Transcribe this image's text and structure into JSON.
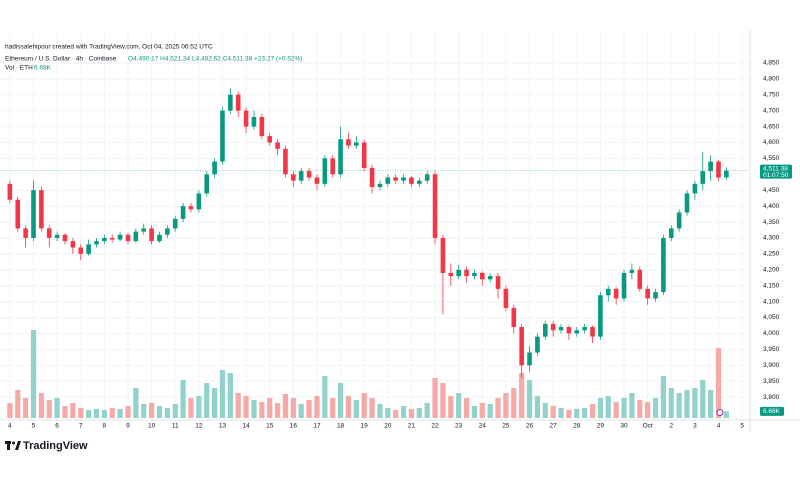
{
  "header": {
    "credit": "hadissalehipour created with TradingView.com, Oct 04, 2025 06:52 UTC",
    "symbol": "Ethereum / U.S. Dollar · 4h · Coinbase",
    "ohlc": "O4,490.17 H4,521.34 L4,482.62 C4,511.38 +23.27 (+0.52%)",
    "volume_label": "Vol · ETH",
    "logo": "TradingView"
  },
  "chart_data": {
    "type": "candlestick",
    "x": [
      0,
      1,
      2,
      3,
      4,
      5,
      6,
      7,
      8,
      9,
      10,
      11,
      12,
      13,
      14,
      15,
      16,
      17,
      18,
      19,
      20,
      21,
      22,
      23,
      24,
      25,
      26,
      27,
      28,
      29,
      30,
      31,
      32,
      33,
      34,
      35,
      36,
      37,
      38,
      39,
      40,
      41,
      42,
      43,
      44,
      45,
      46,
      47,
      48,
      49,
      50,
      51,
      52,
      53,
      54,
      55,
      56,
      57,
      58,
      59,
      60,
      61,
      62,
      63,
      64,
      65,
      66,
      67,
      68,
      69,
      70,
      71,
      72,
      73,
      74,
      75,
      76,
      77,
      78,
      79,
      80,
      81,
      82,
      83,
      84,
      85,
      86,
      87,
      88,
      89,
      90,
      91
    ],
    "open": [
      4470,
      4420,
      4330,
      4300,
      4450,
      4330,
      4300,
      4310,
      4290,
      4270,
      4250,
      4280,
      4290,
      4300,
      4295,
      4310,
      4290,
      4320,
      4330,
      4290,
      4310,
      4330,
      4360,
      4400,
      4390,
      4440,
      4500,
      4540,
      4700,
      4750,
      4700,
      4650,
      4680,
      4620,
      4600,
      4580,
      4500,
      4480,
      4510,
      4490,
      4470,
      4550,
      4500,
      4610,
      4590,
      4600,
      4520,
      4460,
      4470,
      4490,
      4480,
      4490,
      4470,
      4480,
      4500,
      4300,
      4190,
      4180,
      4200,
      4180,
      4190,
      4170,
      4180,
      4140,
      4080,
      4020,
      3900,
      3940,
      3990,
      4030,
      4010,
      4020,
      4000,
      4010,
      4020,
      3990,
      4120,
      4140,
      4110,
      4190,
      4200,
      4140,
      4110,
      4130,
      4300,
      4330,
      4380,
      4440,
      4470,
      4510,
      4540,
      4490.17
    ],
    "high": [
      4480,
      4430,
      4340,
      4480,
      4460,
      4340,
      4320,
      4315,
      4300,
      4280,
      4295,
      4300,
      4310,
      4310,
      4320,
      4315,
      4330,
      4345,
      4340,
      4320,
      4340,
      4370,
      4410,
      4410,
      4450,
      4510,
      4550,
      4710,
      4770,
      4760,
      4710,
      4700,
      4690,
      4630,
      4610,
      4590,
      4510,
      4520,
      4520,
      4500,
      4560,
      4560,
      4650,
      4630,
      4620,
      4610,
      4530,
      4480,
      4500,
      4500,
      4500,
      4495,
      4490,
      4510,
      4510,
      4310,
      4220,
      4215,
      4210,
      4200,
      4195,
      4190,
      4190,
      4150,
      4090,
      4030,
      3960,
      4000,
      4040,
      4040,
      4030,
      4025,
      4020,
      4030,
      4025,
      4130,
      4150,
      4145,
      4200,
      4220,
      4210,
      4150,
      4140,
      4310,
      4340,
      4390,
      4450,
      4480,
      4570,
      4560,
      4545,
      4521.34
    ],
    "low": [
      4410,
      4320,
      4270,
      4290,
      4320,
      4270,
      4290,
      4280,
      4250,
      4230,
      4245,
      4270,
      4280,
      4285,
      4290,
      4280,
      4285,
      4310,
      4280,
      4285,
      4300,
      4320,
      4350,
      4380,
      4380,
      4430,
      4490,
      4530,
      4690,
      4680,
      4630,
      4640,
      4610,
      4590,
      4560,
      4490,
      4460,
      4470,
      4480,
      4450,
      4460,
      4490,
      4490,
      4580,
      4580,
      4510,
      4440,
      4450,
      4460,
      4470,
      4470,
      4460,
      4460,
      4470,
      4280,
      4060,
      4150,
      4170,
      4160,
      4170,
      4150,
      4160,
      4110,
      4070,
      4000,
      3860,
      3880,
      3930,
      3980,
      3990,
      4000,
      3980,
      3990,
      4000,
      3970,
      3980,
      4100,
      4090,
      4100,
      4170,
      4130,
      4090,
      4100,
      4120,
      4290,
      4320,
      4370,
      4420,
      4450,
      4480,
      4480,
      4482.62
    ],
    "close": [
      4420,
      4330,
      4300,
      4450,
      4330,
      4300,
      4310,
      4290,
      4270,
      4250,
      4280,
      4290,
      4300,
      4295,
      4310,
      4290,
      4320,
      4330,
      4290,
      4310,
      4330,
      4360,
      4400,
      4390,
      4440,
      4500,
      4540,
      4700,
      4750,
      4700,
      4650,
      4680,
      4620,
      4600,
      4580,
      4500,
      4480,
      4510,
      4490,
      4470,
      4550,
      4500,
      4610,
      4590,
      4600,
      4520,
      4460,
      4470,
      4490,
      4480,
      4490,
      4470,
      4480,
      4500,
      4300,
      4190,
      4180,
      4200,
      4180,
      4190,
      4170,
      4180,
      4140,
      4080,
      4020,
      3900,
      3940,
      3990,
      4030,
      4010,
      4020,
      4000,
      4010,
      4020,
      3990,
      4120,
      4140,
      4110,
      4190,
      4200,
      4140,
      4110,
      4130,
      4300,
      4330,
      4380,
      4440,
      4470,
      4510,
      4540,
      4490.17,
      4511.38
    ],
    "volume": [
      15,
      28,
      20,
      88,
      25,
      18,
      20,
      12,
      15,
      10,
      8,
      9,
      8,
      10,
      9,
      12,
      30,
      14,
      15,
      12,
      10,
      14,
      38,
      20,
      22,
      35,
      30,
      48,
      45,
      25,
      22,
      18,
      16,
      20,
      15,
      24,
      20,
      14,
      18,
      22,
      42,
      20,
      35,
      22,
      18,
      25,
      20,
      14,
      10,
      8,
      12,
      9,
      10,
      15,
      40,
      35,
      22,
      25,
      20,
      12,
      15,
      14,
      20,
      25,
      30,
      45,
      38,
      22,
      15,
      12,
      10,
      8,
      9,
      10,
      14,
      20,
      22,
      16,
      20,
      25,
      18,
      16,
      20,
      42,
      30,
      25,
      28,
      30,
      38,
      28,
      70,
      6.68
    ],
    "xlim": [
      -1,
      94
    ],
    "xticks": [
      {
        "value": 0,
        "label": "4"
      },
      {
        "value": 3,
        "label": "5"
      },
      {
        "value": 6,
        "label": "6"
      },
      {
        "value": 9,
        "label": "7"
      },
      {
        "value": 12,
        "label": "8"
      },
      {
        "value": 15,
        "label": "9"
      },
      {
        "value": 18,
        "label": "10"
      },
      {
        "value": 21,
        "label": "11"
      },
      {
        "value": 24,
        "label": "12"
      },
      {
        "value": 27,
        "label": "13"
      },
      {
        "value": 30,
        "label": "14"
      },
      {
        "value": 33,
        "label": "15"
      },
      {
        "value": 36,
        "label": "16"
      },
      {
        "value": 39,
        "label": "17"
      },
      {
        "value": 42,
        "label": "18"
      },
      {
        "value": 45,
        "label": "19"
      },
      {
        "value": 48,
        "label": "20"
      },
      {
        "value": 51,
        "label": "21"
      },
      {
        "value": 54,
        "label": "22"
      },
      {
        "value": 57,
        "label": "23"
      },
      {
        "value": 60,
        "label": "24"
      },
      {
        "value": 63,
        "label": "25"
      },
      {
        "value": 66,
        "label": "26"
      },
      {
        "value": 69,
        "label": "27"
      },
      {
        "value": 72,
        "label": "28"
      },
      {
        "value": 75,
        "label": "29"
      },
      {
        "value": 78,
        "label": "30"
      },
      {
        "value": 81,
        "label": "Oct"
      },
      {
        "value": 84,
        "label": "2"
      },
      {
        "value": 87,
        "label": "3"
      },
      {
        "value": 90,
        "label": "4"
      },
      {
        "value": 93,
        "label": "5"
      }
    ],
    "ylim": [
      3728,
      4922
    ],
    "yticks": [
      {
        "value": 4850,
        "label": "4,850"
      },
      {
        "value": 4800,
        "label": "4,800"
      },
      {
        "value": 4750,
        "label": "4,750"
      },
      {
        "value": 4700,
        "label": "4,700"
      },
      {
        "value": 4650,
        "label": "4,650"
      },
      {
        "value": 4600,
        "label": "4,600"
      },
      {
        "value": 4550,
        "label": "4,550"
      },
      {
        "value": 4450,
        "label": "4,450"
      },
      {
        "value": 4400,
        "label": "4,400"
      },
      {
        "value": 4350,
        "label": "4,350"
      },
      {
        "value": 4300,
        "label": "4,300"
      },
      {
        "value": 4250,
        "label": "4,250"
      },
      {
        "value": 4200,
        "label": "4,200"
      },
      {
        "value": 4150,
        "label": "4,150"
      },
      {
        "value": 4100,
        "label": "4,100"
      },
      {
        "value": 4050,
        "label": "4,050"
      },
      {
        "value": 4000,
        "label": "4,000"
      },
      {
        "value": 3950,
        "label": "3,950"
      },
      {
        "value": 3900,
        "label": "3,900"
      },
      {
        "value": 3850,
        "label": "3,850"
      },
      {
        "value": 3800,
        "label": "3,800"
      }
    ],
    "volume_ylim": [
      0,
      100
    ],
    "last_price": {
      "value": 4511.38,
      "label": "4,511.38"
    },
    "countdown": "01:07:50",
    "last_volume": {
      "value": 6.68,
      "label": "6.68K"
    },
    "up_color": "#089981",
    "down_color": "#f23645",
    "volume_up_color": "#92d2cc",
    "volume_down_color": "#f7a9a7",
    "grid": true
  }
}
